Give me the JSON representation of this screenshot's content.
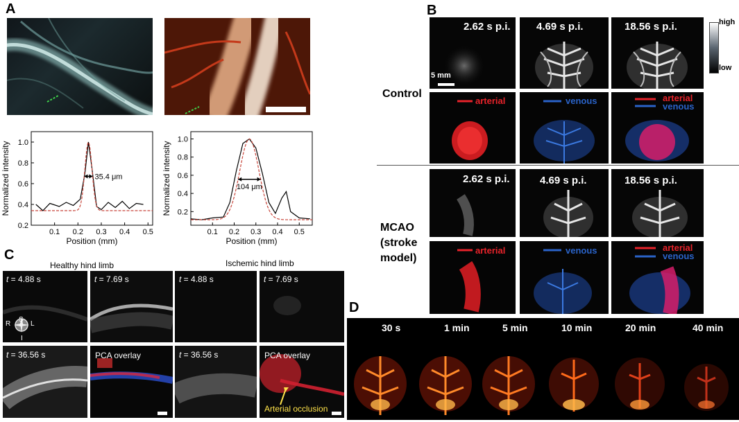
{
  "panel_letters": {
    "a": "A",
    "b": "B",
    "c": "C",
    "d": "D"
  },
  "panelA": {
    "scalebar_visible": true,
    "chart_data": [
      {
        "type": "line",
        "x": [
          0.02,
          0.05,
          0.08,
          0.12,
          0.15,
          0.18,
          0.21,
          0.23,
          0.245,
          0.26,
          0.28,
          0.3,
          0.33,
          0.36,
          0.39,
          0.42,
          0.45,
          0.48
        ],
        "series": [
          {
            "values": [
              0.4,
              0.34,
              0.41,
              0.38,
              0.42,
              0.39,
              0.45,
              0.7,
              1.0,
              0.75,
              0.38,
              0.35,
              0.42,
              0.37,
              0.43,
              0.36,
              0.41,
              0.4
            ]
          }
        ],
        "fit_color": "#c8453a",
        "xlabel": "Position (mm)",
        "ylabel": "Normalized intensity",
        "xticks": [
          "0.1",
          "0.2",
          "0.3",
          "0.4",
          "0.5"
        ],
        "yticks": [
          "0.2",
          "0.4",
          "0.6",
          "0.8",
          "1.0"
        ],
        "xlim": [
          0,
          0.52
        ],
        "ylim": [
          0.2,
          1.1
        ],
        "annotation": "35.4 μm"
      },
      {
        "type": "line",
        "x": [
          0.0,
          0.05,
          0.1,
          0.15,
          0.18,
          0.21,
          0.24,
          0.27,
          0.3,
          0.33,
          0.36,
          0.39,
          0.42,
          0.44,
          0.46,
          0.5,
          0.55
        ],
        "series": [
          {
            "values": [
              0.12,
              0.11,
              0.13,
              0.14,
              0.3,
              0.65,
              0.95,
              1.0,
              0.9,
              0.62,
              0.3,
              0.18,
              0.35,
              0.42,
              0.2,
              0.13,
              0.12
            ]
          }
        ],
        "fit_color": "#c8453a",
        "xlabel": "Position (mm)",
        "ylabel": "Normalized intensity",
        "xticks": [
          "0.1",
          "0.2",
          "0.3",
          "0.4",
          "0.5"
        ],
        "yticks": [
          "0.2",
          "0.4",
          "0.6",
          "0.8",
          "1.0"
        ],
        "xlim": [
          0,
          0.56
        ],
        "ylim": [
          0.05,
          1.08
        ],
        "annotation": "104 μm"
      }
    ]
  },
  "panelB": {
    "times": [
      "2.62 s p.i.",
      "4.69 s p.i.",
      "18.56 s p.i."
    ],
    "colorbar": {
      "high": "high",
      "low": "low"
    },
    "scalebar": "5 mm",
    "group1": "Control",
    "group2_lines": [
      "MCAO",
      "(stroke",
      "model)"
    ],
    "arterial": "arterial",
    "venous": "venous",
    "arterial_color": "#e8232a",
    "venous_color": "#2a63c9"
  },
  "panelC": {
    "healthy": "Healthy hind limb",
    "ischemic": "Ischemic hind limb",
    "t_prefix": "t",
    "times": [
      " = 4.88 s",
      " = 7.69 s",
      " = 4.88 s",
      " = 7.69 s",
      " = 36.56 s",
      " = 36.56 s"
    ],
    "overlay": "PCA overlay",
    "occlusion": "Arterial occlusion",
    "compass": {
      "s": "S",
      "i": "I",
      "r": "R",
      "l": "L"
    }
  },
  "panelD": {
    "times": [
      "30 s",
      "1 min",
      "5 min",
      "10 min",
      "20 min",
      "40 min"
    ]
  }
}
